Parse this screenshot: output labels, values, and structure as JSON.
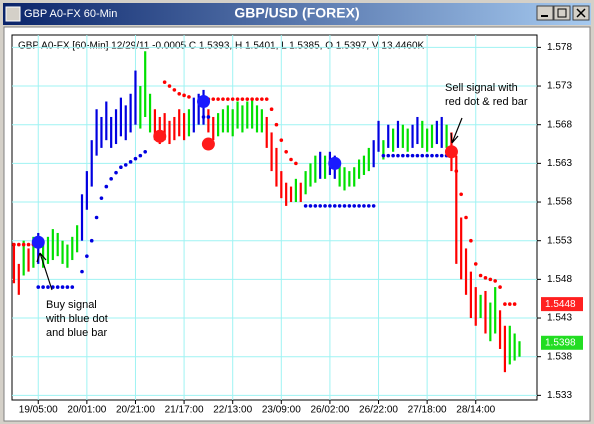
{
  "chart_data": {
    "type": "price_bars",
    "window_title": "GBP A0-FX 60-Min",
    "title": "GBP/USD (FOREX)",
    "info": "GBP A0-FX [60-Min] 12/29/11  -0.0005 C 1.5393, H 1.5401, L 1.5385, O 1.5397, V 13.4460K",
    "categories": [
      null,
      null,
      null,
      null,
      null,
      "19/05:00",
      null,
      null,
      null,
      null,
      null,
      null,
      null,
      null,
      null,
      "20/01:00",
      null,
      null,
      null,
      null,
      null,
      null,
      null,
      null,
      null,
      "20/21:00",
      null,
      null,
      null,
      null,
      null,
      null,
      null,
      null,
      null,
      "21/17:00",
      null,
      null,
      null,
      null,
      null,
      null,
      null,
      null,
      null,
      "22/13:00",
      null,
      null,
      null,
      null,
      null,
      null,
      null,
      null,
      null,
      "23/09:00",
      null,
      null,
      null,
      null,
      null,
      null,
      null,
      null,
      null,
      "26/02:00",
      null,
      null,
      null,
      null,
      null,
      null,
      null,
      null,
      null,
      "26/22:00",
      null,
      null,
      null,
      null,
      null,
      null,
      null,
      null,
      null,
      "27/18:00",
      null,
      null,
      null,
      null,
      null,
      null,
      null,
      null,
      null,
      "28/14:00",
      null,
      null,
      null,
      null,
      null,
      null,
      null,
      null,
      null,
      null,
      null,
      null
    ],
    "highs": [
      1.5525,
      1.55,
      1.553,
      1.552,
      1.5535,
      1.554,
      1.553,
      1.5535,
      1.5545,
      1.554,
      1.553,
      1.5525,
      1.5535,
      1.555,
      1.559,
      1.562,
      1.566,
      1.57,
      1.569,
      1.571,
      1.569,
      1.57,
      1.5715,
      1.5705,
      1.572,
      1.575,
      1.573,
      1.5775,
      1.572,
      1.57,
      1.569,
      1.5695,
      1.5685,
      1.569,
      1.57,
      1.5695,
      1.57,
      1.5715,
      1.572,
      1.5725,
      1.57,
      1.569,
      1.5695,
      1.57,
      1.5705,
      1.57,
      1.571,
      1.5705,
      1.571,
      1.5715,
      1.5705,
      1.57,
      1.569,
      1.567,
      1.565,
      1.562,
      1.5605,
      1.56,
      1.561,
      1.5605,
      1.562,
      1.563,
      1.564,
      1.5645,
      1.564,
      1.5645,
      1.564,
      1.563,
      1.5625,
      1.562,
      1.5625,
      1.5635,
      1.564,
      1.565,
      1.566,
      1.5685,
      1.566,
      1.568,
      1.5675,
      1.5685,
      1.568,
      1.5675,
      1.568,
      1.569,
      1.5685,
      1.5675,
      1.568,
      1.5685,
      1.569,
      1.568,
      1.567,
      1.564,
      1.556,
      1.552,
      1.549,
      1.547,
      1.546,
      1.5465,
      1.545,
      1.547,
      1.544,
      1.542,
      1.542,
      1.541,
      1.54,
      null,
      null,
      null
    ],
    "lows": [
      1.5475,
      1.546,
      1.5485,
      1.549,
      1.5495,
      1.55,
      1.5495,
      1.55,
      1.5505,
      1.551,
      1.55,
      1.5495,
      1.5505,
      1.5515,
      1.553,
      1.557,
      1.56,
      1.564,
      1.565,
      1.566,
      1.565,
      1.5655,
      1.5665,
      1.566,
      1.567,
      1.568,
      1.5675,
      1.569,
      1.567,
      1.566,
      1.5655,
      1.566,
      1.5655,
      1.566,
      1.5665,
      1.566,
      1.5665,
      1.567,
      1.568,
      1.568,
      1.567,
      1.566,
      1.5665,
      1.567,
      1.567,
      1.5665,
      1.5675,
      1.567,
      1.5675,
      1.5675,
      1.567,
      1.567,
      1.565,
      1.562,
      1.56,
      1.5585,
      1.5575,
      1.558,
      1.558,
      1.558,
      1.559,
      1.56,
      1.5605,
      1.561,
      1.561,
      1.5615,
      1.561,
      1.56,
      1.5595,
      1.56,
      1.56,
      1.561,
      1.5615,
      1.562,
      1.5625,
      1.5645,
      1.5635,
      1.565,
      1.5645,
      1.565,
      1.565,
      1.5645,
      1.565,
      1.5655,
      1.565,
      1.5645,
      1.565,
      1.5655,
      1.565,
      1.565,
      1.562,
      1.55,
      1.548,
      1.546,
      1.543,
      1.542,
      1.543,
      1.541,
      1.54,
      1.541,
      1.539,
      1.536,
      1.537,
      1.5375,
      1.538,
      null,
      null,
      null
    ],
    "bar_colors": [
      "#ff0000",
      "#ff0000",
      "#00e000",
      "#ff0000",
      "#00e000",
      "#0000e0",
      "#00e000",
      "#00e000",
      "#00e000",
      "#00e000",
      "#00e000",
      "#00e000",
      "#00e000",
      "#00e000",
      "#0000e0",
      "#0000e0",
      "#0000e0",
      "#0000e0",
      "#0000e0",
      "#0000e0",
      "#0000e0",
      "#0000e0",
      "#0000e0",
      "#0000e0",
      "#0000e0",
      "#0000e0",
      "#00e000",
      "#00e000",
      "#00e000",
      "#ff0000",
      "#ff0000",
      "#ff0000",
      "#ff0000",
      "#ff0000",
      "#ff0000",
      "#ff0000",
      "#00e000",
      "#0000e0",
      "#0000e0",
      "#0000e0",
      "#ff0000",
      "#ff0000",
      "#00e000",
      "#00e000",
      "#00e000",
      "#00e000",
      "#00e000",
      "#00e000",
      "#00e000",
      "#00e000",
      "#00e000",
      "#00e000",
      "#ff0000",
      "#ff0000",
      "#ff0000",
      "#ff0000",
      "#ff0000",
      "#ff0000",
      "#00e000",
      "#ff0000",
      "#00e000",
      "#00e000",
      "#00e000",
      "#0000e0",
      "#00e000",
      "#0000e0",
      "#0000e0",
      "#00e000",
      "#00e000",
      "#00e000",
      "#00e000",
      "#00e000",
      "#00e000",
      "#00e000",
      "#0000e0",
      "#0000e0",
      "#00e000",
      "#0000e0",
      "#00e000",
      "#0000e0",
      "#00e000",
      "#00e000",
      "#0000e0",
      "#0000e0",
      "#00e000",
      "#00e000",
      "#00e000",
      "#0000e0",
      "#0000e0",
      "#00e000",
      "#ff0000",
      "#ff0000",
      "#ff0000",
      "#ff0000",
      "#ff0000",
      "#ff0000",
      "#00e000",
      "#ff0000",
      "#00e000",
      "#00e000",
      "#ff0000",
      "#ff0000",
      "#00e000",
      "#00e000",
      "#00e000",
      null,
      null,
      null
    ],
    "red_dots_color": "#ff0000",
    "red_dots": [
      1.5525,
      1.5525,
      1.5525,
      1.5525,
      1.5525,
      null,
      null,
      null,
      null,
      null,
      null,
      null,
      null,
      null,
      null,
      null,
      null,
      null,
      null,
      null,
      null,
      null,
      null,
      null,
      null,
      null,
      null,
      null,
      null,
      null,
      null,
      1.5735,
      1.573,
      1.5725,
      1.572,
      1.5718,
      1.5716,
      null,
      null,
      1.5715,
      1.5713,
      1.5713,
      1.5713,
      1.5713,
      1.5713,
      1.5713,
      1.5713,
      1.5713,
      1.5713,
      1.5713,
      1.5713,
      1.5713,
      1.5713,
      1.57,
      1.568,
      1.566,
      1.5645,
      1.5635,
      1.563,
      null,
      null,
      null,
      null,
      null,
      null,
      null,
      null,
      null,
      null,
      null,
      null,
      null,
      null,
      null,
      null,
      null,
      null,
      null,
      null,
      null,
      null,
      null,
      null,
      null,
      null,
      null,
      null,
      null,
      null,
      null,
      null,
      1.562,
      1.559,
      1.556,
      1.553,
      1.55,
      1.5485,
      1.5482,
      1.548,
      1.5478,
      1.547,
      1.5448,
      1.5448,
      1.5448,
      null,
      null,
      null,
      null
    ],
    "blue_dots_color": "#0000e0",
    "blue_dots": [
      null,
      null,
      null,
      null,
      null,
      1.547,
      1.547,
      1.547,
      1.547,
      1.547,
      1.547,
      1.547,
      1.547,
      null,
      1.549,
      1.551,
      1.553,
      1.556,
      1.5585,
      1.56,
      1.561,
      1.5618,
      1.5625,
      1.5628,
      1.5632,
      1.5636,
      1.564,
      1.5645,
      null,
      null,
      null,
      null,
      null,
      null,
      null,
      null,
      null,
      null,
      null,
      1.569,
      1.569,
      null,
      null,
      null,
      null,
      null,
      null,
      null,
      null,
      null,
      null,
      null,
      null,
      null,
      null,
      null,
      null,
      null,
      null,
      null,
      1.5575,
      1.5575,
      1.5575,
      1.5575,
      1.5575,
      1.5575,
      1.5575,
      1.5575,
      1.5575,
      1.5575,
      1.5575,
      1.5575,
      1.5575,
      1.5575,
      1.5575,
      null,
      1.564,
      1.564,
      1.564,
      1.564,
      1.564,
      1.564,
      1.564,
      1.564,
      1.564,
      1.564,
      1.564,
      1.564,
      1.564,
      1.564,
      1.564,
      null,
      null,
      null,
      null,
      null,
      null,
      null,
      null,
      null,
      null,
      null,
      null,
      null,
      null,
      null,
      null,
      null
    ],
    "signals": [
      {
        "x": 5,
        "value": 1.5528,
        "color": "#1a1aff"
      },
      {
        "x": 30,
        "value": 1.5665,
        "color": "#ff1a1a"
      },
      {
        "x": 39,
        "value": 1.571,
        "color": "#1a1aff"
      },
      {
        "x": 40,
        "value": 1.5655,
        "color": "#ff1a1a"
      },
      {
        "x": 66,
        "value": 1.563,
        "color": "#1a1aff"
      },
      {
        "x": 90,
        "value": 1.5645,
        "color": "#ff1a1a"
      }
    ],
    "annotations": [
      {
        "lines": [
          "Buy signal",
          "with blue dot",
          "and blue bar"
        ]
      },
      {
        "lines": [
          "Sell signal with",
          "red dot & red bar"
        ]
      }
    ],
    "price_labels": [
      {
        "value": 1.5448,
        "color": "#ff2020"
      },
      {
        "value": 1.5398,
        "color": "#22dd22"
      }
    ],
    "ylim": [
      1.5324,
      1.5796
    ],
    "yticks": [
      1.533,
      1.538,
      1.543,
      1.548,
      1.553,
      1.558,
      1.563,
      1.568,
      1.573,
      1.578
    ],
    "grid": true
  }
}
